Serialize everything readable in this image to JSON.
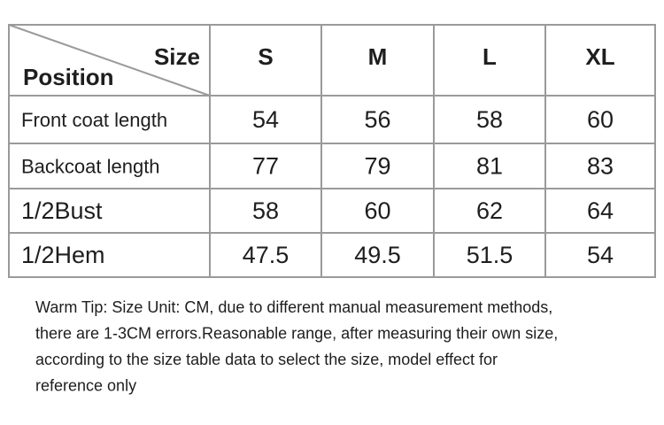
{
  "table": {
    "corner": {
      "column_header": "Size",
      "row_header": "Position"
    },
    "columns": [
      "S",
      "M",
      "L",
      "XL"
    ],
    "rows": [
      {
        "label": "Front coat length",
        "values": [
          54,
          56,
          58,
          60
        ]
      },
      {
        "label": "Backcoat length",
        "values": [
          77,
          79,
          81,
          83
        ]
      },
      {
        "label": "1/2Bust",
        "values": [
          58,
          60,
          62,
          64
        ]
      },
      {
        "label": "1/2Hem",
        "values": [
          47.5,
          49.5,
          51.5,
          54
        ]
      }
    ]
  },
  "note": {
    "lines": [
      "Warm Tip: Size Unit: CM, due to different manual measurement methods,",
      "there are 1-3CM errors.Reasonable range, after measuring their own size,",
      "according to the size table data to select the size, model effect for",
      "reference only"
    ]
  }
}
